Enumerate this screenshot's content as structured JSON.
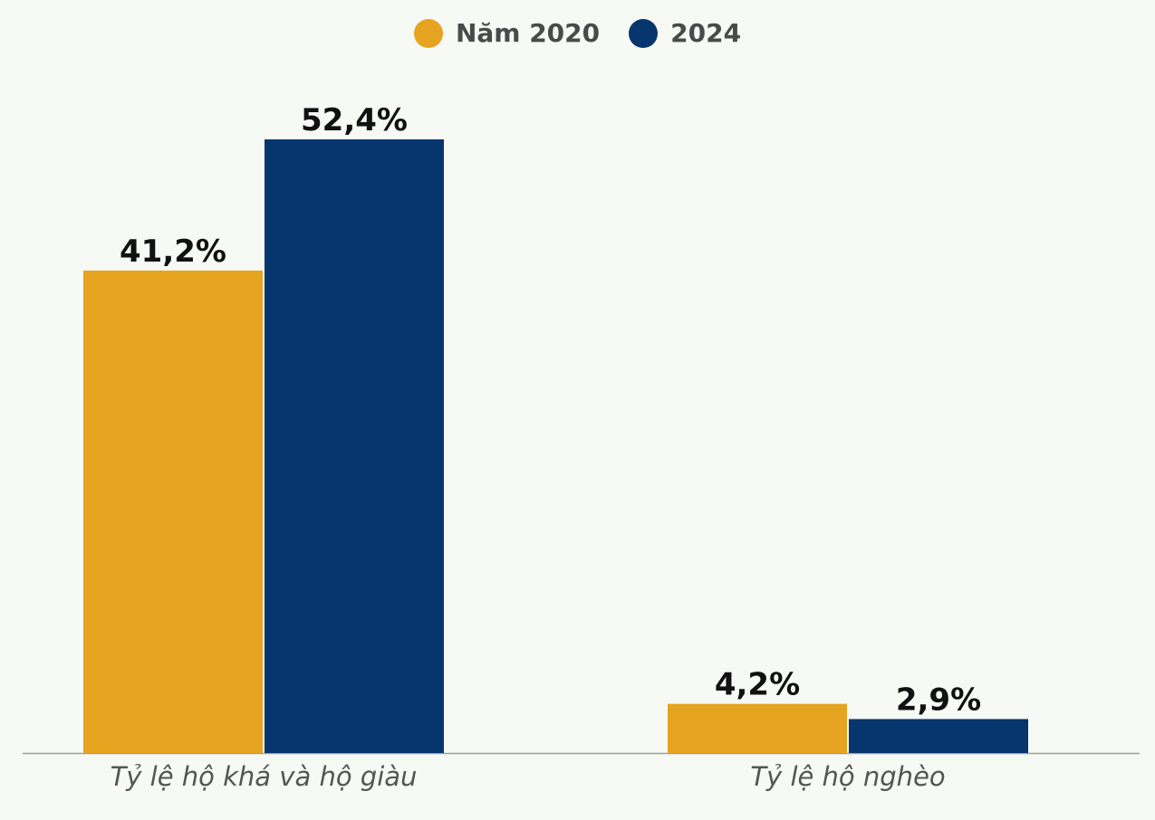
{
  "chart_data": {
    "type": "bar",
    "categories": [
      "Tỷ lệ hộ khá và hộ giàu",
      "Tỷ lệ hộ nghèo"
    ],
    "series": [
      {
        "name": "Năm 2020",
        "values": [
          41.2,
          4.2
        ],
        "labels": [
          "41,2%",
          "4,2%"
        ],
        "color": "#e6a320"
      },
      {
        "name": "2024",
        "values": [
          52.4,
          2.9
        ],
        "labels": [
          "52,4%",
          "2,9%"
        ],
        "color": "#07356e"
      }
    ],
    "title": "",
    "xlabel": "",
    "ylabel": "",
    "ylim": [
      0,
      60
    ],
    "grid": false,
    "legend_position": "top-center",
    "axis_color": "#9e9e9e",
    "label_color": "#111111",
    "category_label_color": "#555555",
    "background_color": "#f7f9f4"
  }
}
